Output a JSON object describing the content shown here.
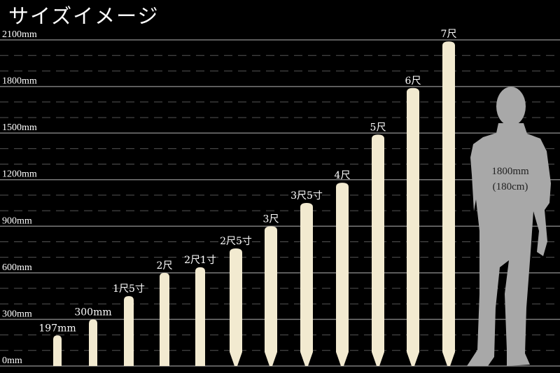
{
  "title": "サイズイメージ",
  "chart_data": {
    "type": "bar",
    "title": "サイズイメージ",
    "ylabel": "",
    "xlabel": "",
    "ylim": [
      0,
      2100
    ],
    "yticks": [
      0,
      300,
      600,
      900,
      1200,
      1500,
      1800,
      2100
    ],
    "ytick_labels": [
      "0mm",
      "300mm",
      "600mm",
      "900mm",
      "1200mm",
      "1500mm",
      "1800mm",
      "2100mm"
    ],
    "minor_gridlines_dashed_every": 100,
    "grid": true,
    "categories": [
      "197mm",
      "300mm",
      "1尺5寸",
      "2尺",
      "2尺1寸",
      "2尺5寸",
      "3尺",
      "3尺5寸",
      "4尺",
      "5尺",
      "6尺",
      "7尺"
    ],
    "values": [
      197,
      300,
      450,
      600,
      636,
      757,
      900,
      1050,
      1180,
      1490,
      1790,
      2090
    ],
    "pointed_tip": [
      false,
      false,
      false,
      false,
      false,
      true,
      true,
      true,
      true,
      true,
      true,
      true
    ],
    "bar_color": "#f2ead0",
    "reference": {
      "label": "1800mm",
      "sublabel": "(180cm)",
      "value": 1800,
      "color": "#a8a8a8"
    }
  }
}
